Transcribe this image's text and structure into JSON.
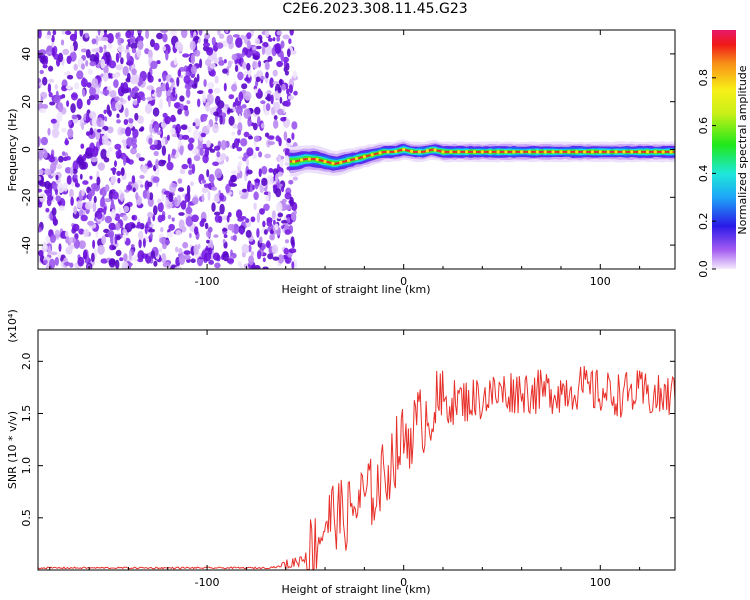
{
  "title": "C2E6.2023.308.11.45.G23",
  "colors": {
    "snr_line": "#e8302a",
    "ridge_line": "#e8302a",
    "scatter_purple": "#7a20e6",
    "axis": "#000000"
  },
  "chart_data": [
    {
      "type": "heatmap",
      "name": "spectrogram",
      "xlabel": "Height of straight line (km)",
      "ylabel": "Frequency (Hz)",
      "xlim": [
        -186,
        138
      ],
      "ylim": [
        -50,
        50
      ],
      "xticks": [
        -100,
        0,
        100
      ],
      "xtick_labels": [
        "-100",
        "0",
        "100"
      ],
      "yticks": [
        -40,
        -20,
        0,
        20,
        40
      ],
      "ytick_labels": [
        "-40",
        "-20",
        "0",
        "20",
        "40"
      ],
      "noise_region_x": [
        -186,
        -58
      ],
      "ridge": {
        "x": [
          -58,
          -55,
          -50,
          -45,
          -40,
          -35,
          -30,
          -25,
          -20,
          -15,
          -10,
          -5,
          0,
          5,
          10,
          15,
          20,
          40,
          60,
          80,
          100,
          120,
          138
        ],
        "y": [
          -5,
          -5,
          -4,
          -4,
          -5,
          -6,
          -5,
          -4,
          -3,
          -2,
          -1,
          -1,
          0,
          -1,
          -1,
          0,
          -1,
          -1,
          -1,
          -1,
          -1,
          -1,
          -1
        ]
      },
      "colorbar": {
        "label": "Normalized spectral amplitude",
        "range": [
          0,
          1
        ],
        "ticks": [
          0.0,
          0.2,
          0.4,
          0.6,
          0.8
        ],
        "tick_labels": [
          "0.0",
          "0.2",
          "0.4",
          "0.6",
          "0.8"
        ]
      }
    },
    {
      "type": "line",
      "name": "snr",
      "xlabel": "Height of straight line (km)",
      "ylabel": "SNR (10 * v/v)",
      "scale_label": "(x10⁴)",
      "xlim": [
        -186,
        138
      ],
      "ylim": [
        0,
        2.3
      ],
      "xticks": [
        -100,
        0,
        100
      ],
      "xtick_labels": [
        "-100",
        "0",
        "100"
      ],
      "yticks": [
        0.5,
        1.0,
        1.5,
        2.0
      ],
      "ytick_labels": [
        "0.5",
        "1.0",
        "1.5",
        "2.0"
      ],
      "series": [
        {
          "x": [
            -186,
            -150,
            -100,
            -70,
            -60,
            -50,
            -45,
            -40,
            -35,
            -30,
            -25,
            -20,
            -15,
            -10,
            -5,
            0,
            5,
            10,
            15,
            20,
            30,
            40,
            50,
            60,
            70,
            80,
            90,
            100,
            110,
            120,
            130,
            138
          ],
          "y": [
            0.02,
            0.02,
            0.02,
            0.02,
            0.04,
            0.12,
            0.25,
            0.45,
            0.55,
            0.5,
            0.6,
            0.7,
            0.75,
            0.9,
            1.1,
            1.25,
            1.35,
            1.45,
            1.55,
            1.6,
            1.62,
            1.65,
            1.7,
            1.72,
            1.7,
            1.72,
            1.75,
            1.7,
            1.68,
            1.7,
            1.65,
            1.68
          ]
        }
      ]
    }
  ]
}
